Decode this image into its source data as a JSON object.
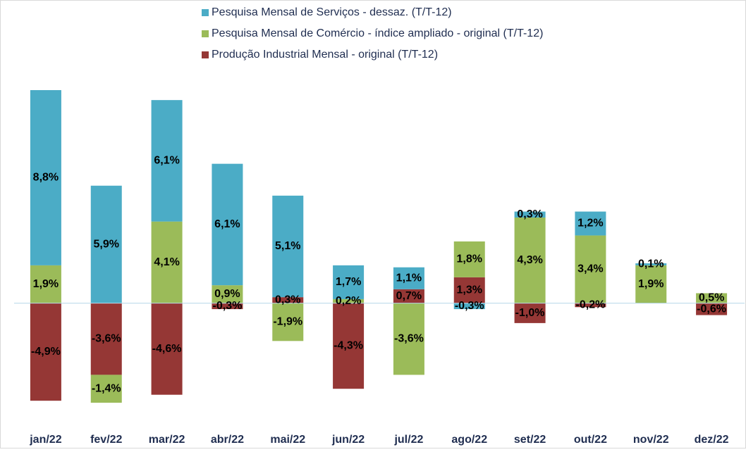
{
  "chart_data": {
    "type": "bar",
    "stacked": true,
    "categories": [
      "jan/22",
      "fev/22",
      "mar/22",
      "abr/22",
      "mai/22",
      "jun/22",
      "jul/22",
      "ago/22",
      "set/22",
      "out/22",
      "nov/22",
      "dez/22"
    ],
    "series": [
      {
        "name": "Pesquisa Mensal de Serviços - dessaz. (T/T-12)",
        "color": "#4bacc6",
        "values": [
          8.8,
          5.9,
          6.1,
          6.1,
          5.1,
          1.7,
          1.1,
          -0.3,
          0.3,
          1.2,
          0.1,
          null
        ],
        "value_labels": [
          "8,8%",
          "5,9%",
          "6,1%",
          "6,1%",
          "5,1%",
          "1,7%",
          "1,1%",
          "-0,3%",
          "0,3%",
          "1,2%",
          "0,1%",
          null
        ]
      },
      {
        "name": "Pesquisa Mensal de Comércio - índice ampliado - original (T/T-12)",
        "color": "#9bbb59",
        "values": [
          1.9,
          -1.4,
          4.1,
          0.9,
          -1.9,
          0.2,
          -3.6,
          1.8,
          4.3,
          3.4,
          1.9,
          0.5
        ],
        "value_labels": [
          "1,9%",
          "-1,4%",
          "4,1%",
          "0,9%",
          "-1,9%",
          "0,2%",
          "-3,6%",
          "1,8%",
          "4,3%",
          "3,4%",
          "1,9%",
          "0,5%"
        ]
      },
      {
        "name": "Produção Industrial Mensal - original (T/T-12)",
        "color": "#953735",
        "values": [
          -4.9,
          -3.6,
          -4.6,
          -0.3,
          0.3,
          -4.3,
          0.7,
          1.3,
          -1.0,
          -0.2,
          null,
          -0.6
        ],
        "value_labels": [
          "-4,9%",
          "-3,6%",
          "-4,6%",
          "-0,3%",
          "0,3%",
          "-4,3%",
          "0,7%",
          "1,3%",
          "-1,0%",
          "-0,2%",
          null,
          "-0,6%"
        ]
      }
    ]
  }
}
